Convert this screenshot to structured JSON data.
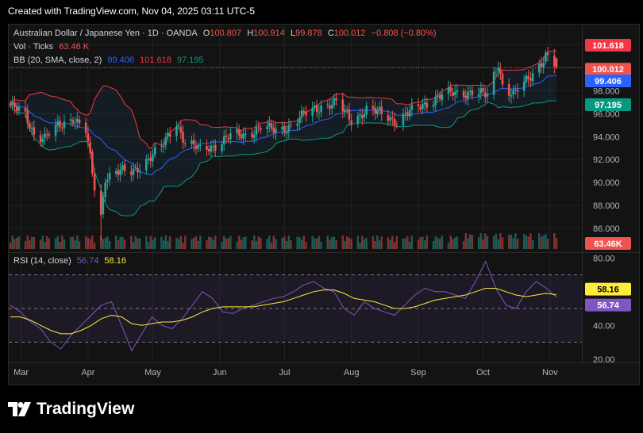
{
  "header": {
    "created_text": "Created with TradingView.com, Nov 04, 2025 03:11 UTC-5"
  },
  "legend": {
    "symbol": "Australian Dollar / Japanese Yen · 1D · OANDA",
    "o_label": "O",
    "o": "100.807",
    "h_label": "H",
    "h": "100.914",
    "l_label": "L",
    "l": "99.878",
    "c_label": "C",
    "c": "100.012",
    "change": "−0.808 (−0.80%)",
    "vol_label": "Vol · Ticks",
    "vol": "63.46 K",
    "bb_label": "BB (20, SMA, close, 2)",
    "bb_mid": "99.406",
    "bb_upper": "101.618",
    "bb_lower": "97.195",
    "rsi_label": "RSI (14, close)",
    "rsi": "56.74",
    "rsi_ma": "58.16"
  },
  "badges": {
    "bb_upper": "101.618",
    "close": "100.012",
    "bb_mid": "99.406",
    "bb_lower": "97.195",
    "vol": "63.46K",
    "rsi_ma": "58.16",
    "rsi": "56.74"
  },
  "footer": {
    "brand": "TradingView"
  },
  "colors": {
    "up": "#26a69a",
    "down": "#ef5350",
    "bb_upper": "#f23645",
    "bb_mid": "#2962ff",
    "bb_lower": "#089981",
    "rsi": "#7e57c2",
    "rsi_ma": "#ffeb3b",
    "text": "#d1d4dc",
    "grid": "#222222"
  },
  "chart_data": [
    {
      "type": "candlestick",
      "title": "Australian Dollar / Japanese Yen · 1D · OANDA",
      "x_ticks": [
        "Mar",
        "Apr",
        "May",
        "Jun",
        "Jul",
        "Aug",
        "Sep",
        "Oct",
        "Nov"
      ],
      "y_ticks": [
        "86.000",
        "88.000",
        "90.000",
        "92.000",
        "94.000",
        "96.000",
        "98.000",
        "100.000",
        "102.000"
      ],
      "ylim": [
        84.0,
        103.0
      ],
      "last": {
        "open": 100.807,
        "high": 100.914,
        "low": 99.878,
        "close": 100.012
      },
      "close_path": [
        {
          "date": "2025-02-24",
          "close": 96.7
        },
        {
          "date": "2025-03-03",
          "close": 95.8
        },
        {
          "date": "2025-03-07",
          "close": 94.3
        },
        {
          "date": "2025-03-12",
          "close": 93.9
        },
        {
          "date": "2025-03-18",
          "close": 94.8
        },
        {
          "date": "2025-03-25",
          "close": 95.7
        },
        {
          "date": "2025-03-31",
          "close": 94.5
        },
        {
          "date": "2025-04-04",
          "close": 89.5
        },
        {
          "date": "2025-04-07",
          "close": 87.0
        },
        {
          "date": "2025-04-09",
          "close": 90.5
        },
        {
          "date": "2025-04-14",
          "close": 91.0
        },
        {
          "date": "2025-04-21",
          "close": 90.8
        },
        {
          "date": "2025-04-28",
          "close": 92.0
        },
        {
          "date": "2025-05-05",
          "close": 93.0
        },
        {
          "date": "2025-05-12",
          "close": 95.3
        },
        {
          "date": "2025-05-16",
          "close": 93.5
        },
        {
          "date": "2025-05-23",
          "close": 92.8
        },
        {
          "date": "2025-05-30",
          "close": 93.3
        },
        {
          "date": "2025-06-06",
          "close": 94.0
        },
        {
          "date": "2025-06-13",
          "close": 94.2
        },
        {
          "date": "2025-06-20",
          "close": 94.8
        },
        {
          "date": "2025-06-27",
          "close": 94.5
        },
        {
          "date": "2025-07-04",
          "close": 95.0
        },
        {
          "date": "2025-07-11",
          "close": 96.0
        },
        {
          "date": "2025-07-18",
          "close": 96.7
        },
        {
          "date": "2025-07-25",
          "close": 96.9
        },
        {
          "date": "2025-08-01",
          "close": 95.5
        },
        {
          "date": "2025-08-08",
          "close": 96.3
        },
        {
          "date": "2025-08-15",
          "close": 96.0
        },
        {
          "date": "2025-08-22",
          "close": 95.4
        },
        {
          "date": "2025-08-29",
          "close": 96.2
        },
        {
          "date": "2025-09-05",
          "close": 97.0
        },
        {
          "date": "2025-09-12",
          "close": 97.6
        },
        {
          "date": "2025-09-19",
          "close": 97.8
        },
        {
          "date": "2025-09-26",
          "close": 97.9
        },
        {
          "date": "2025-10-03",
          "close": 97.5
        },
        {
          "date": "2025-10-08",
          "close": 100.5
        },
        {
          "date": "2025-10-10",
          "close": 98.5
        },
        {
          "date": "2025-10-15",
          "close": 97.6
        },
        {
          "date": "2025-10-20",
          "close": 98.6
        },
        {
          "date": "2025-10-24",
          "close": 99.6
        },
        {
          "date": "2025-10-30",
          "close": 101.0
        },
        {
          "date": "2025-11-04",
          "close": 100.012
        }
      ],
      "bollinger": {
        "upper_last": 101.618,
        "mid_last": 99.406,
        "lower_last": 97.195
      }
    },
    {
      "type": "bar",
      "title": "Vol · Ticks",
      "last_value": "63.46 K"
    },
    {
      "type": "line",
      "title": "RSI (14, close)",
      "y_ticks": [
        "20.00",
        "40.00",
        "60.00",
        "80.00"
      ],
      "ylim": [
        18,
        82
      ],
      "bands": [
        30,
        50,
        70
      ],
      "series": [
        {
          "name": "RSI",
          "values": [
            52,
            48,
            42,
            38,
            30,
            26,
            34,
            40,
            46,
            52,
            54,
            40,
            25,
            35,
            45,
            40,
            38,
            44,
            52,
            60,
            56,
            48,
            47,
            50,
            52,
            54,
            56,
            57,
            60,
            64,
            66,
            62,
            60,
            50,
            46,
            54,
            50,
            48,
            46,
            52,
            58,
            62,
            60,
            60,
            58,
            56,
            66,
            78,
            62,
            52,
            50,
            60,
            66,
            62,
            56.74
          ]
        },
        {
          "name": "RSI MA",
          "values": [
            45,
            45,
            43,
            40,
            37,
            35,
            35,
            37,
            40,
            44,
            46,
            45,
            41,
            40,
            41,
            42,
            42,
            43,
            45,
            48,
            50,
            51,
            51,
            51,
            51,
            52,
            53,
            54,
            56,
            58,
            60,
            61,
            61,
            59,
            56,
            55,
            54,
            52,
            50,
            50,
            51,
            53,
            55,
            56,
            57,
            58,
            60,
            62,
            62,
            60,
            58,
            57,
            58,
            59,
            58.16
          ]
        }
      ]
    }
  ]
}
